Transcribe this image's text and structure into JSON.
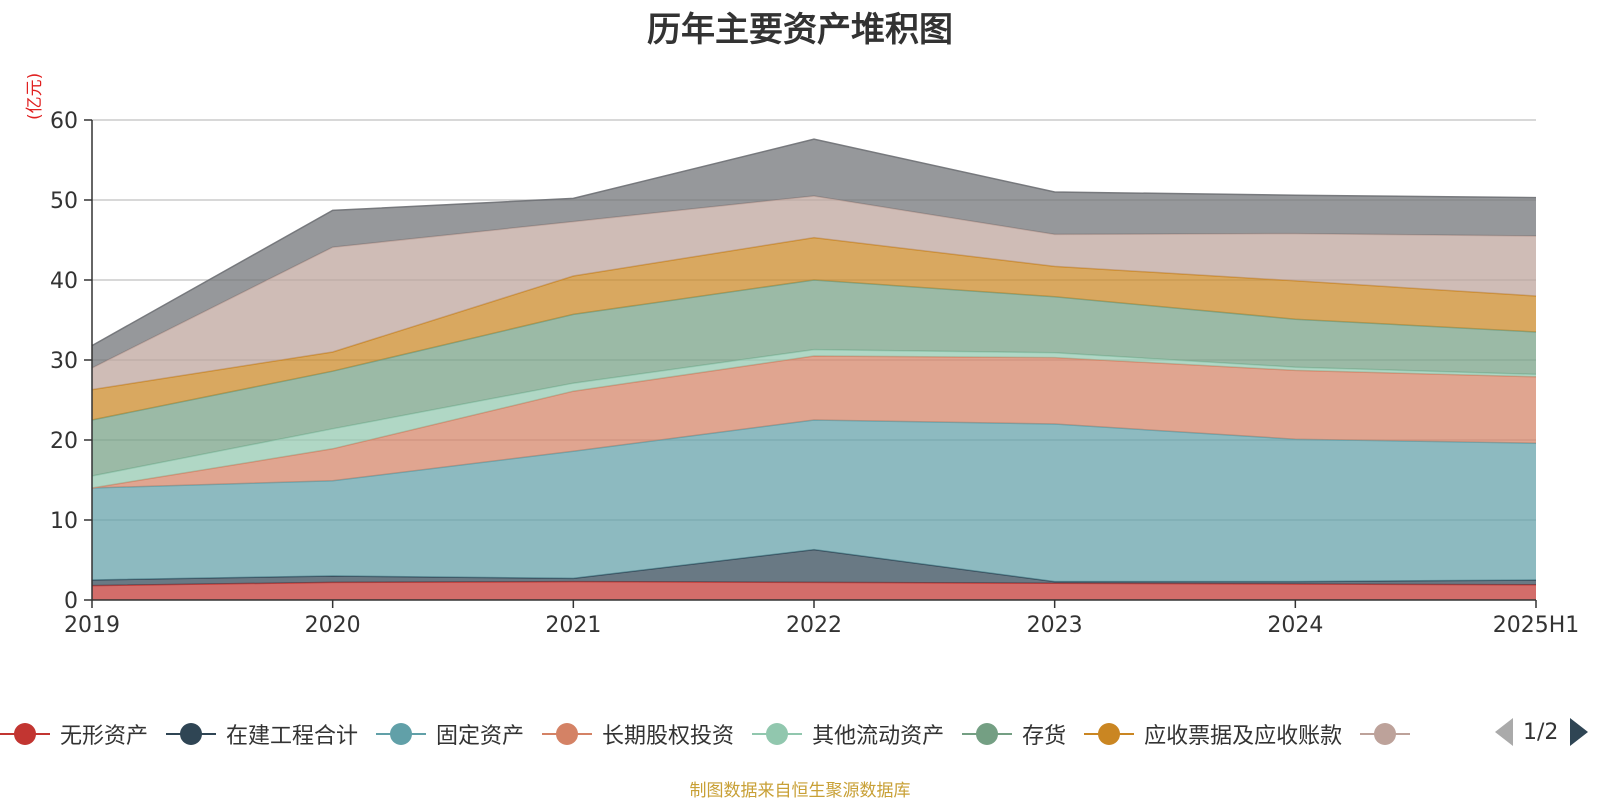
{
  "title": "历年主要资产堆积图",
  "unit_label": "(亿元)",
  "footer": "制图数据来自恒生聚源数据库",
  "pager": {
    "text": "1/2"
  },
  "legend_visible_count": 8,
  "chart_data": {
    "type": "area",
    "stacked": true,
    "title": "历年主要资产堆积图",
    "ylabel": "(亿元)",
    "ylim": [
      0,
      60
    ],
    "yticks": [
      0,
      10,
      20,
      30,
      40,
      50,
      60
    ],
    "grid": true,
    "legend_position": "bottom",
    "categories": [
      "2019",
      "2020",
      "2021",
      "2022",
      "2023",
      "2024",
      "2025H1"
    ],
    "series": [
      {
        "name": "无形资产",
        "color": "#c23531",
        "values": [
          1.8,
          2.2,
          2.3,
          2.2,
          2.1,
          2.0,
          1.9
        ]
      },
      {
        "name": "在建工程合计",
        "color": "#2f4554",
        "values": [
          0.7,
          0.8,
          0.4,
          4.1,
          0.2,
          0.3,
          0.6
        ]
      },
      {
        "name": "固定资产",
        "color": "#61a0a8",
        "values": [
          11.5,
          11.9,
          15.9,
          16.2,
          19.7,
          17.8,
          17.1
        ]
      },
      {
        "name": "长期股权投资",
        "color": "#d48265",
        "values": [
          0.0,
          4.0,
          7.5,
          8.0,
          8.3,
          8.6,
          8.3
        ]
      },
      {
        "name": "其他流动资产",
        "color": "#91c7ae",
        "values": [
          1.5,
          2.5,
          1.0,
          0.8,
          0.6,
          0.4,
          0.3
        ]
      },
      {
        "name": "存货",
        "color": "#749f83",
        "values": [
          7.0,
          7.2,
          8.6,
          8.7,
          7.0,
          6.0,
          5.3
        ]
      },
      {
        "name": "应收票据及应收账款",
        "color": "#ca8622",
        "values": [
          3.8,
          2.4,
          4.8,
          5.3,
          3.8,
          4.8,
          4.5
        ]
      },
      {
        "name": "",
        "color": "#bda29a",
        "values": [
          2.7,
          13.1,
          6.8,
          5.2,
          4.0,
          5.9,
          7.5
        ]
      },
      {
        "name": "",
        "color": "#6e7074",
        "values": [
          2.8,
          4.6,
          2.9,
          7.1,
          5.3,
          4.8,
          4.8
        ]
      }
    ]
  }
}
